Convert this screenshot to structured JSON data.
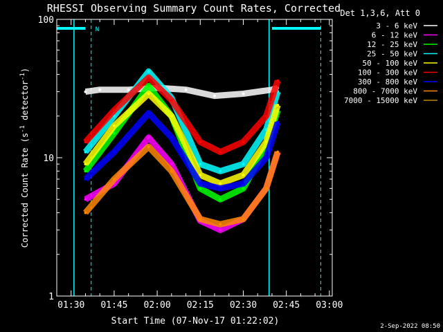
{
  "chart_data": {
    "type": "line",
    "title": "RHESSI Observing Summary Count Rates, Corrected",
    "xlabel": "Start Time (07-Nov-17 01:22:02)",
    "ylabel": "Corrected Count Rate (s⁻¹ detector⁻¹)",
    "ylabel_parts": [
      "Corrected Count Rate (s",
      "-1",
      " detector",
      "-1",
      ")"
    ],
    "yscale": "log",
    "ylim": [
      1,
      100
    ],
    "xlim_minutes": [
      85,
      181
    ],
    "x_ticks": [
      "01:30",
      "01:45",
      "02:00",
      "02:15",
      "02:30",
      "02:45",
      "03:00"
    ],
    "x_tick_minutes": [
      90,
      105,
      120,
      135,
      150,
      165,
      180
    ],
    "y_tick_labels": [
      "1",
      "10",
      "100"
    ],
    "y_ticks": [
      1,
      10,
      100
    ],
    "legend_header": "Det 1,3,6, Att 0",
    "legend_placement": "right",
    "series": [
      {
        "name": "3 - 6 keV",
        "color": "#ffffff",
        "x": [
          "01:35",
          "01:40",
          "01:50",
          "02:00",
          "02:10",
          "02:20",
          "02:30",
          "02:40",
          "02:42"
        ],
        "y": [
          30,
          31,
          31,
          32,
          31,
          28,
          29,
          31,
          32
        ]
      },
      {
        "name": "6 - 12 keV",
        "color": "#ff00ff",
        "x": [
          "01:35",
          "01:45",
          "01:57",
          "02:05",
          "02:15",
          "02:22",
          "02:30",
          "02:38",
          "02:42"
        ],
        "y": [
          5,
          6.5,
          14,
          9,
          3.5,
          3,
          3.6,
          6,
          11
        ]
      },
      {
        "name": "12 - 25 keV",
        "color": "#00ff00",
        "x": [
          "01:35",
          "01:45",
          "01:57",
          "02:05",
          "02:15",
          "02:22",
          "02:30",
          "02:38",
          "02:42"
        ],
        "y": [
          8,
          15,
          33,
          20,
          6,
          5,
          6,
          12,
          22
        ]
      },
      {
        "name": "25 - 50 keV",
        "color": "#00ffff",
        "x": [
          "01:35",
          "01:45",
          "01:57",
          "02:05",
          "02:15",
          "02:22",
          "02:30",
          "02:38",
          "02:42"
        ],
        "y": [
          11,
          20,
          42,
          27,
          9,
          8,
          9,
          16,
          30
        ]
      },
      {
        "name": "50 - 100 keV",
        "color": "#ffff00",
        "x": [
          "01:35",
          "01:45",
          "01:57",
          "02:05",
          "02:15",
          "02:22",
          "02:30",
          "02:38",
          "02:42"
        ],
        "y": [
          9,
          17,
          29,
          20,
          7.5,
          6.5,
          7.5,
          13,
          24
        ]
      },
      {
        "name": "100 - 300 keV",
        "color": "#ff0000",
        "x": [
          "01:35",
          "01:45",
          "01:57",
          "02:05",
          "02:15",
          "02:22",
          "02:30",
          "02:38",
          "02:42"
        ],
        "y": [
          13,
          22,
          38,
          26,
          13,
          11,
          13,
          20,
          36
        ]
      },
      {
        "name": "300 - 800 keV",
        "color": "#0000ff",
        "x": [
          "01:35",
          "01:45",
          "01:57",
          "02:05",
          "02:15",
          "02:22",
          "02:30",
          "02:38",
          "02:42"
        ],
        "y": [
          7,
          11,
          21,
          14,
          6.5,
          6,
          6.5,
          10,
          18
        ]
      },
      {
        "name": "800 - 7000 keV",
        "color": "#ff8800",
        "x": [
          "01:35",
          "01:45",
          "01:57",
          "02:05",
          "02:15",
          "02:22",
          "02:30",
          "02:38",
          "02:42"
        ],
        "y": [
          4,
          7,
          12,
          8,
          3.6,
          3.3,
          3.6,
          6,
          11
        ]
      },
      {
        "name": "7000 - 15000 keV",
        "color": "#bb8800",
        "x": [],
        "y": []
      }
    ],
    "annotations": {
      "night_marker": "N",
      "eclipse_bar_color": "#00ffff"
    },
    "timestamp": "2-Sep-2022 08:50"
  }
}
